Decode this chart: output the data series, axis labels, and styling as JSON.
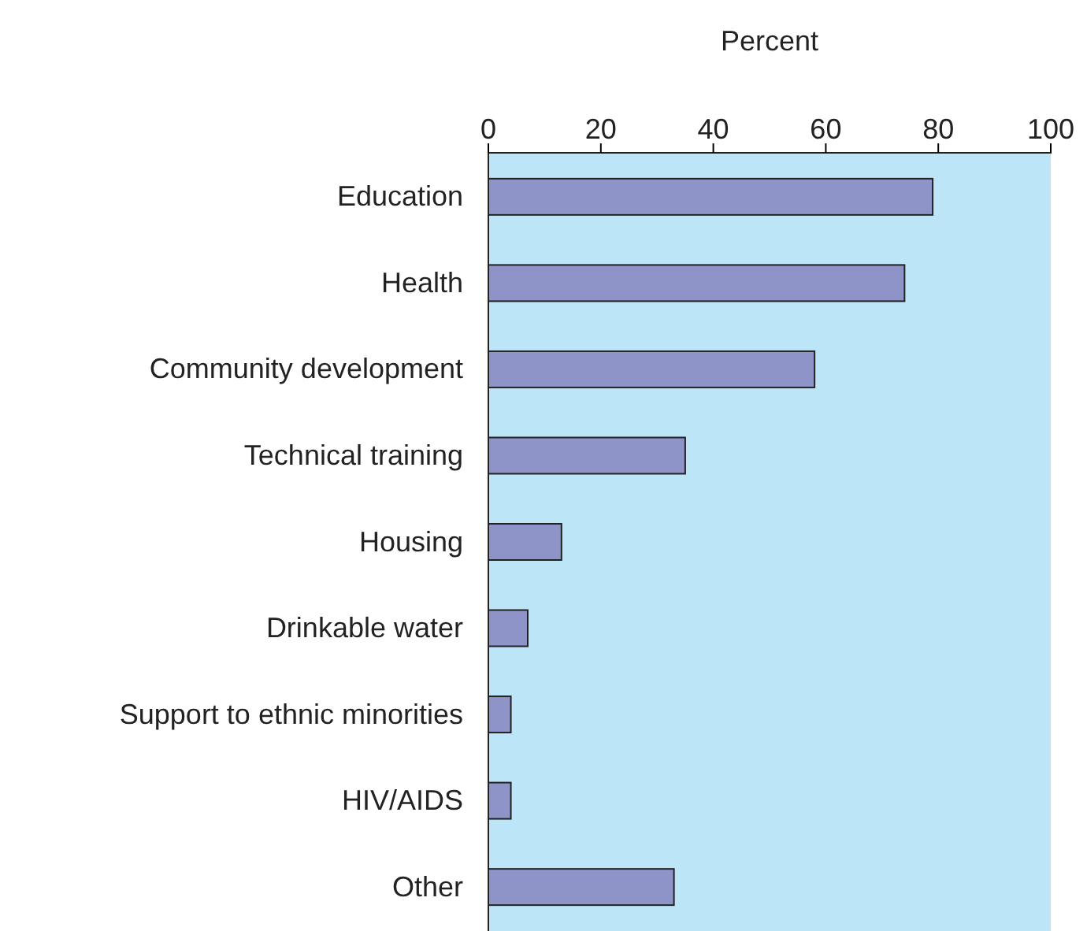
{
  "chart_data": {
    "type": "bar",
    "orientation": "horizontal",
    "xlabel": "Percent",
    "categories": [
      "Education",
      "Health",
      "Community development",
      "Technical training",
      "Housing",
      "Drinkable water",
      "Support to ethnic minorities",
      "HIV/AIDS",
      "Other"
    ],
    "values": [
      79,
      74,
      58,
      35,
      13,
      7,
      4,
      4,
      33
    ],
    "color": "#8e94c8",
    "xlim": [
      0,
      100
    ],
    "xticks": [
      0,
      20,
      40,
      60,
      80,
      100
    ],
    "grid": false
  }
}
